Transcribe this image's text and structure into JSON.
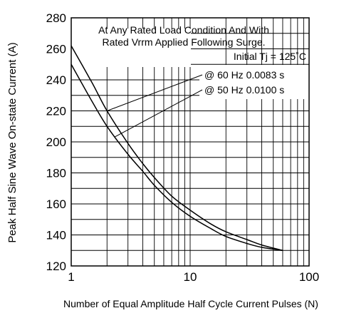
{
  "chart_data": {
    "type": "line",
    "xlabel": "Number of Equal Amplitude Half Cycle Current Pulses (N)",
    "ylabel": "Peak Half Sine Wave On-state Current (A)",
    "xscale": "log",
    "xlim": [
      1,
      100
    ],
    "ylim": [
      120,
      280
    ],
    "grid": true,
    "x_tick_labels": [
      "1",
      "10",
      "100"
    ],
    "y_tick_labels": [
      "120",
      "140",
      "160",
      "180",
      "200",
      "220",
      "240",
      "260",
      "280"
    ],
    "annotations": [
      "At Any Rated Load Condition And With",
      "Rated Vrrm Applied Following Surge.",
      "Initial Tj = 125˚C"
    ],
    "series": [
      {
        "name": "@ 60 Hz 0.0083 s",
        "x": [
          1,
          1.5,
          2,
          3,
          4,
          5,
          7,
          10,
          15,
          20,
          30,
          40,
          60
        ],
        "y": [
          262,
          238,
          220,
          199,
          186,
          177,
          165,
          156,
          147,
          142,
          137,
          133.5,
          130
        ]
      },
      {
        "name": "@ 50 Hz 0.0100 s",
        "x": [
          1,
          1.5,
          2,
          3,
          4,
          5,
          7,
          10,
          15,
          20,
          30,
          40,
          60
        ],
        "y": [
          250,
          226,
          210,
          192,
          181,
          172,
          161,
          152,
          144,
          139,
          134.5,
          132,
          130
        ]
      }
    ]
  }
}
